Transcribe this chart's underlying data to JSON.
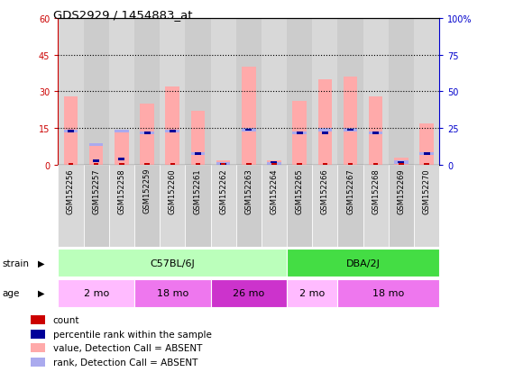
{
  "title": "GDS2929 / 1454883_at",
  "samples": [
    "GSM152256",
    "GSM152257",
    "GSM152258",
    "GSM152259",
    "GSM152260",
    "GSM152261",
    "GSM152262",
    "GSM152263",
    "GSM152264",
    "GSM152265",
    "GSM152266",
    "GSM152267",
    "GSM152268",
    "GSM152269",
    "GSM152270"
  ],
  "absent_value": [
    28,
    8,
    14,
    25,
    32,
    22,
    2,
    40,
    2,
    26,
    35,
    36,
    28,
    3,
    17
  ],
  "absent_rank_pct": [
    23,
    14,
    23,
    22,
    23,
    8,
    0,
    24,
    1,
    22,
    24,
    24,
    22,
    2,
    8
  ],
  "count_val": [
    0,
    0,
    0,
    0,
    0,
    0,
    0,
    0,
    0,
    0,
    0,
    0,
    0,
    0,
    0
  ],
  "rank_pct": [
    23,
    3,
    4,
    22,
    23,
    8,
    0,
    24,
    2,
    22,
    22,
    24,
    22,
    2,
    8
  ],
  "ylim": [
    0,
    60
  ],
  "y2lim": [
    0,
    100
  ],
  "yticks": [
    0,
    15,
    30,
    45,
    60
  ],
  "y2ticks": [
    0,
    25,
    50,
    75,
    100
  ],
  "strain_groups": [
    {
      "label": "C57BL/6J",
      "start": 0,
      "end": 9,
      "color": "#bbffbb"
    },
    {
      "label": "DBA/2J",
      "start": 9,
      "end": 15,
      "color": "#44dd44"
    }
  ],
  "age_groups": [
    {
      "label": "2 mo",
      "start": 0,
      "end": 3,
      "color": "#ffbbff"
    },
    {
      "label": "18 mo",
      "start": 3,
      "end": 6,
      "color": "#ee77ee"
    },
    {
      "label": "26 mo",
      "start": 6,
      "end": 9,
      "color": "#cc33cc"
    },
    {
      "label": "2 mo",
      "start": 9,
      "end": 11,
      "color": "#ffbbff"
    },
    {
      "label": "18 mo",
      "start": 11,
      "end": 15,
      "color": "#ee77ee"
    }
  ],
  "bar_width": 0.55,
  "count_color": "#cc0000",
  "rank_color": "#000099",
  "absent_value_color": "#ffaaaa",
  "absent_rank_color": "#aaaaee",
  "bg_color": "#ffffff",
  "left_tick_color": "#cc0000",
  "right_tick_color": "#0000cc"
}
